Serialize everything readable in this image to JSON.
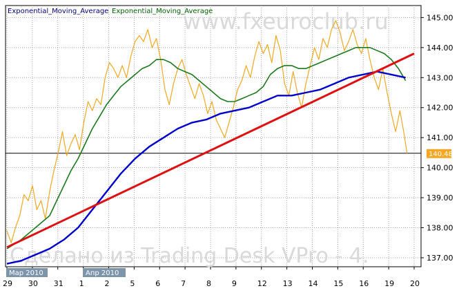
{
  "legend": {
    "line1": "Exponential_Moving_Average",
    "line2": "Exponential_Moving_Average"
  },
  "watermark": {
    "top": "www.fxeuroclub.ru",
    "bottom": "Сделано из Trading Desk VPro - 4."
  },
  "colors": {
    "price": "#f0a81e",
    "ema_fast": "#1a7a1a",
    "ema_slow": "#0000cc",
    "trendline": "#dd1111",
    "grid": "#a0a0a0",
    "month_tag": "#7d95ab"
  },
  "chart_data": {
    "type": "line",
    "y_ticks": [
      "145.00",
      "144.00",
      "143.00",
      "142.00",
      "141.00",
      "140.00",
      "139.00",
      "138.00",
      "137.00"
    ],
    "ylim": [
      136.7,
      145.4
    ],
    "x_ticks": [
      "29",
      "30",
      "31",
      "1",
      "2",
      "5",
      "6",
      "7",
      "8",
      "9",
      "12",
      "13",
      "14",
      "15",
      "16",
      "19",
      "20"
    ],
    "month_labels": [
      "Мар 2010",
      "Апр 2010"
    ],
    "current_price_label": "140.48",
    "current_price": 140.48,
    "series": [
      {
        "key": "price",
        "points": [
          [
            0,
            137.9
          ],
          [
            0.3,
            137.5
          ],
          [
            0.6,
            138.0
          ],
          [
            0.9,
            138.4
          ],
          [
            1.2,
            139.1
          ],
          [
            1.5,
            138.9
          ],
          [
            1.8,
            139.4
          ],
          [
            2.1,
            138.6
          ],
          [
            2.4,
            138.9
          ],
          [
            2.7,
            138.3
          ],
          [
            3.0,
            139.2
          ],
          [
            3.3,
            139.9
          ],
          [
            3.6,
            140.5
          ],
          [
            3.9,
            141.2
          ],
          [
            4.2,
            140.4
          ],
          [
            4.5,
            140.8
          ],
          [
            4.8,
            141.1
          ],
          [
            5.1,
            140.6
          ],
          [
            5.4,
            141.5
          ],
          [
            5.7,
            142.2
          ],
          [
            6.0,
            141.9
          ],
          [
            6.3,
            142.3
          ],
          [
            6.6,
            142.1
          ],
          [
            6.9,
            143.0
          ],
          [
            7.2,
            143.5
          ],
          [
            7.5,
            143.3
          ],
          [
            7.8,
            143.0
          ],
          [
            8.1,
            143.4
          ],
          [
            8.4,
            143.0
          ],
          [
            8.7,
            143.7
          ],
          [
            9.0,
            144.2
          ],
          [
            9.3,
            144.4
          ],
          [
            9.6,
            144.2
          ],
          [
            9.9,
            144.6
          ],
          [
            10.2,
            144.0
          ],
          [
            10.5,
            144.3
          ],
          [
            10.8,
            143.6
          ],
          [
            11.1,
            142.6
          ],
          [
            11.4,
            142.1
          ],
          [
            11.7,
            142.8
          ],
          [
            12.0,
            143.3
          ],
          [
            12.3,
            143.6
          ],
          [
            12.6,
            143.1
          ],
          [
            12.9,
            142.7
          ],
          [
            13.2,
            142.3
          ],
          [
            13.5,
            142.8
          ],
          [
            13.8,
            142.4
          ],
          [
            14.1,
            141.8
          ],
          [
            14.4,
            142.2
          ],
          [
            14.7,
            141.6
          ],
          [
            15.0,
            141.3
          ],
          [
            15.3,
            141.0
          ],
          [
            15.6,
            141.5
          ],
          [
            15.9,
            142.0
          ],
          [
            16.2,
            142.6
          ],
          [
            16.5,
            142.9
          ],
          [
            16.8,
            143.4
          ],
          [
            17.1,
            143.0
          ],
          [
            17.4,
            143.7
          ],
          [
            17.7,
            144.2
          ],
          [
            18.0,
            143.8
          ],
          [
            18.3,
            144.1
          ],
          [
            18.6,
            143.5
          ],
          [
            18.9,
            144.4
          ],
          [
            19.2,
            143.9
          ],
          [
            19.5,
            142.8
          ],
          [
            19.8,
            142.4
          ],
          [
            20.1,
            143.2
          ],
          [
            20.4,
            142.5
          ],
          [
            20.7,
            142.0
          ],
          [
            21.0,
            142.8
          ],
          [
            21.3,
            143.4
          ],
          [
            21.6,
            144.0
          ],
          [
            21.9,
            143.6
          ],
          [
            22.2,
            144.3
          ],
          [
            22.5,
            144.0
          ],
          [
            22.8,
            144.6
          ],
          [
            23.1,
            144.9
          ],
          [
            23.4,
            144.5
          ],
          [
            23.7,
            143.9
          ],
          [
            24.0,
            144.2
          ],
          [
            24.3,
            144.6
          ],
          [
            24.6,
            144.1
          ],
          [
            24.9,
            143.8
          ],
          [
            25.2,
            144.3
          ],
          [
            25.5,
            143.6
          ],
          [
            25.8,
            143.0
          ],
          [
            26.1,
            142.6
          ],
          [
            26.4,
            143.3
          ],
          [
            26.7,
            142.5
          ],
          [
            27.0,
            141.8
          ],
          [
            27.3,
            141.2
          ],
          [
            27.6,
            141.9
          ],
          [
            27.9,
            141.1
          ],
          [
            28.1,
            140.48
          ]
        ]
      },
      {
        "key": "ema_fast",
        "points": [
          [
            0,
            137.3
          ],
          [
            1,
            137.6
          ],
          [
            2,
            138.0
          ],
          [
            3,
            138.4
          ],
          [
            3.5,
            138.9
          ],
          [
            4,
            139.4
          ],
          [
            4.5,
            139.9
          ],
          [
            5,
            140.3
          ],
          [
            5.5,
            140.8
          ],
          [
            6,
            141.3
          ],
          [
            6.5,
            141.7
          ],
          [
            7,
            142.1
          ],
          [
            7.5,
            142.4
          ],
          [
            8,
            142.7
          ],
          [
            8.5,
            142.9
          ],
          [
            9,
            143.1
          ],
          [
            9.5,
            143.3
          ],
          [
            10,
            143.4
          ],
          [
            10.5,
            143.6
          ],
          [
            11,
            143.6
          ],
          [
            11.5,
            143.5
          ],
          [
            12,
            143.3
          ],
          [
            12.5,
            143.2
          ],
          [
            13,
            143.1
          ],
          [
            13.5,
            142.9
          ],
          [
            14,
            142.7
          ],
          [
            14.5,
            142.5
          ],
          [
            15,
            142.3
          ],
          [
            15.5,
            142.2
          ],
          [
            16,
            142.2
          ],
          [
            16.5,
            142.3
          ],
          [
            17,
            142.4
          ],
          [
            17.5,
            142.5
          ],
          [
            18,
            142.7
          ],
          [
            18.5,
            143.1
          ],
          [
            19,
            143.3
          ],
          [
            19.5,
            143.4
          ],
          [
            20,
            143.4
          ],
          [
            20.5,
            143.3
          ],
          [
            21,
            143.3
          ],
          [
            21.5,
            143.4
          ],
          [
            22,
            143.5
          ],
          [
            22.5,
            143.6
          ],
          [
            23,
            143.7
          ],
          [
            23.5,
            143.8
          ],
          [
            24,
            143.9
          ],
          [
            24.5,
            144.0
          ],
          [
            25,
            144.0
          ],
          [
            25.5,
            144.0
          ],
          [
            26,
            143.9
          ],
          [
            26.5,
            143.8
          ],
          [
            27,
            143.6
          ],
          [
            27.5,
            143.3
          ],
          [
            28,
            142.9
          ]
        ]
      },
      {
        "key": "ema_slow",
        "points": [
          [
            0,
            136.8
          ],
          [
            1,
            136.9
          ],
          [
            2,
            137.1
          ],
          [
            3,
            137.3
          ],
          [
            4,
            137.6
          ],
          [
            5,
            138.0
          ],
          [
            6,
            138.6
          ],
          [
            7,
            139.2
          ],
          [
            8,
            139.8
          ],
          [
            9,
            140.3
          ],
          [
            10,
            140.7
          ],
          [
            11,
            141.0
          ],
          [
            12,
            141.3
          ],
          [
            13,
            141.5
          ],
          [
            14,
            141.6
          ],
          [
            15,
            141.8
          ],
          [
            16,
            141.9
          ],
          [
            17,
            142.0
          ],
          [
            18,
            142.2
          ],
          [
            19,
            142.4
          ],
          [
            20,
            142.4
          ],
          [
            21,
            142.5
          ],
          [
            22,
            142.6
          ],
          [
            23,
            142.8
          ],
          [
            24,
            143.0
          ],
          [
            25,
            143.1
          ],
          [
            26,
            143.2
          ],
          [
            27,
            143.1
          ],
          [
            28,
            143.0
          ]
        ]
      },
      {
        "key": "trendline",
        "points": [
          [
            0,
            137.35
          ],
          [
            28.6,
            143.8
          ]
        ]
      }
    ],
    "hline": 140.48,
    "grid": true
  }
}
